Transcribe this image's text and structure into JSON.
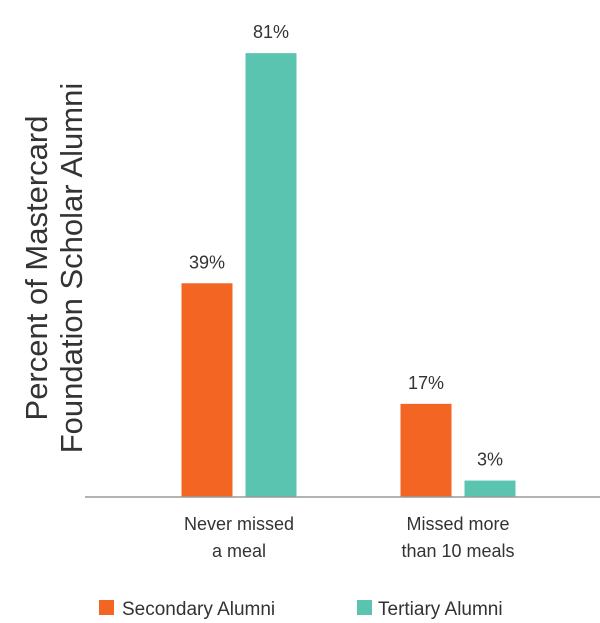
{
  "chart_data": {
    "type": "bar",
    "ylabel": [
      "Percent of Mastercard",
      "Foundation Scholar Alumni"
    ],
    "categories": [
      [
        "Never missed",
        "a meal"
      ],
      [
        "Missed more",
        "than 10 meals"
      ]
    ],
    "series": [
      {
        "name": "Secondary Alumni",
        "color": "#f26522",
        "values": [
          39,
          17
        ],
        "labels": [
          "39%",
          "17%"
        ]
      },
      {
        "name": "Tertiary Alumni",
        "color": "#5bc4b1",
        "values": [
          81,
          3
        ],
        "labels": [
          "81%",
          "3%"
        ]
      }
    ],
    "ylim": [
      0,
      100
    ],
    "grid": false,
    "legend_position": "bottom"
  },
  "colors": {
    "axis": "#9a9a9a",
    "text": "#333333"
  }
}
